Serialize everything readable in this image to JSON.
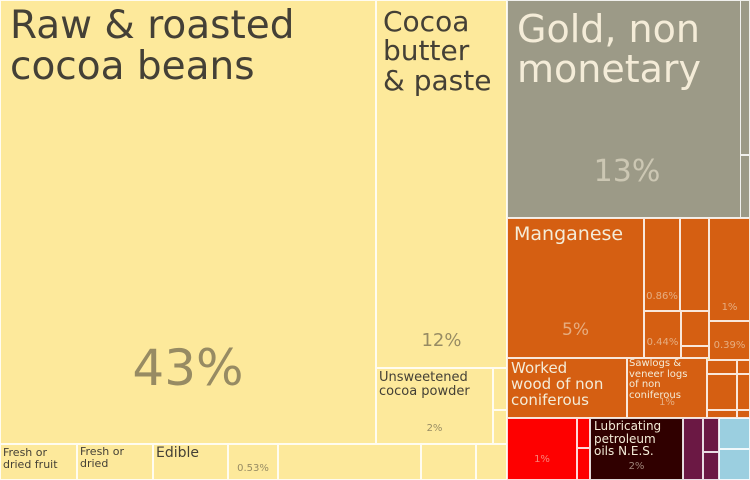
{
  "chart_data": {
    "type": "treemap",
    "title": "",
    "tiles": [
      {
        "label": "Raw & roasted\ncocoa beans",
        "share_label": "43%",
        "value": 43,
        "color": "#fde99b"
      },
      {
        "label": "Cocoa\nbutter\n& paste",
        "share_label": "12%",
        "value": 12,
        "color": "#fde99b"
      },
      {
        "label": "Gold, non\nmonetary",
        "share_label": "13%",
        "value": 13,
        "color": "#9c9a87"
      },
      {
        "label": "Manganese",
        "share_label": "5%",
        "value": 5,
        "color": "#d55f12"
      },
      {
        "label": "",
        "share_label": "0.86%",
        "value": 0.86,
        "color": "#d55f12"
      },
      {
        "label": "",
        "share_label": "0.44%",
        "value": 0.44,
        "color": "#d55f12"
      },
      {
        "label": "",
        "share_label": "1%",
        "value": 1,
        "color": "#d55f12"
      },
      {
        "label": "",
        "share_label": "0.39%",
        "value": 0.39,
        "color": "#d55f12"
      },
      {
        "label": "Unsweetened\ncocoa powder",
        "share_label": "2%",
        "value": 2,
        "color": "#fde99b"
      },
      {
        "label": "Worked\nwood of non\nconiferous",
        "share_label": "",
        "value": null,
        "color": "#d55f12"
      },
      {
        "label": "Sawlogs &\nveneer logs\nof non\nconiferous",
        "share_label": "1%",
        "value": 1,
        "color": "#d55f12"
      },
      {
        "label": "",
        "share_label": "1%",
        "value": 1,
        "color": "#fe0000"
      },
      {
        "label": "Lubricating\npetroleum\noils N.E.S.",
        "share_label": "2%",
        "value": 2,
        "color": "#300000"
      },
      {
        "label": "Fresh or\ndried fruit",
        "share_label": "",
        "value": null,
        "color": "#fde99b"
      },
      {
        "label": "Fresh or\ndried",
        "share_label": "",
        "value": null,
        "color": "#fde99b"
      },
      {
        "label": "Edible",
        "share_label": "",
        "value": null,
        "color": "#fde99b"
      },
      {
        "label": "",
        "share_label": "0.53%",
        "value": 0.53,
        "color": "#fde99b"
      }
    ]
  }
}
